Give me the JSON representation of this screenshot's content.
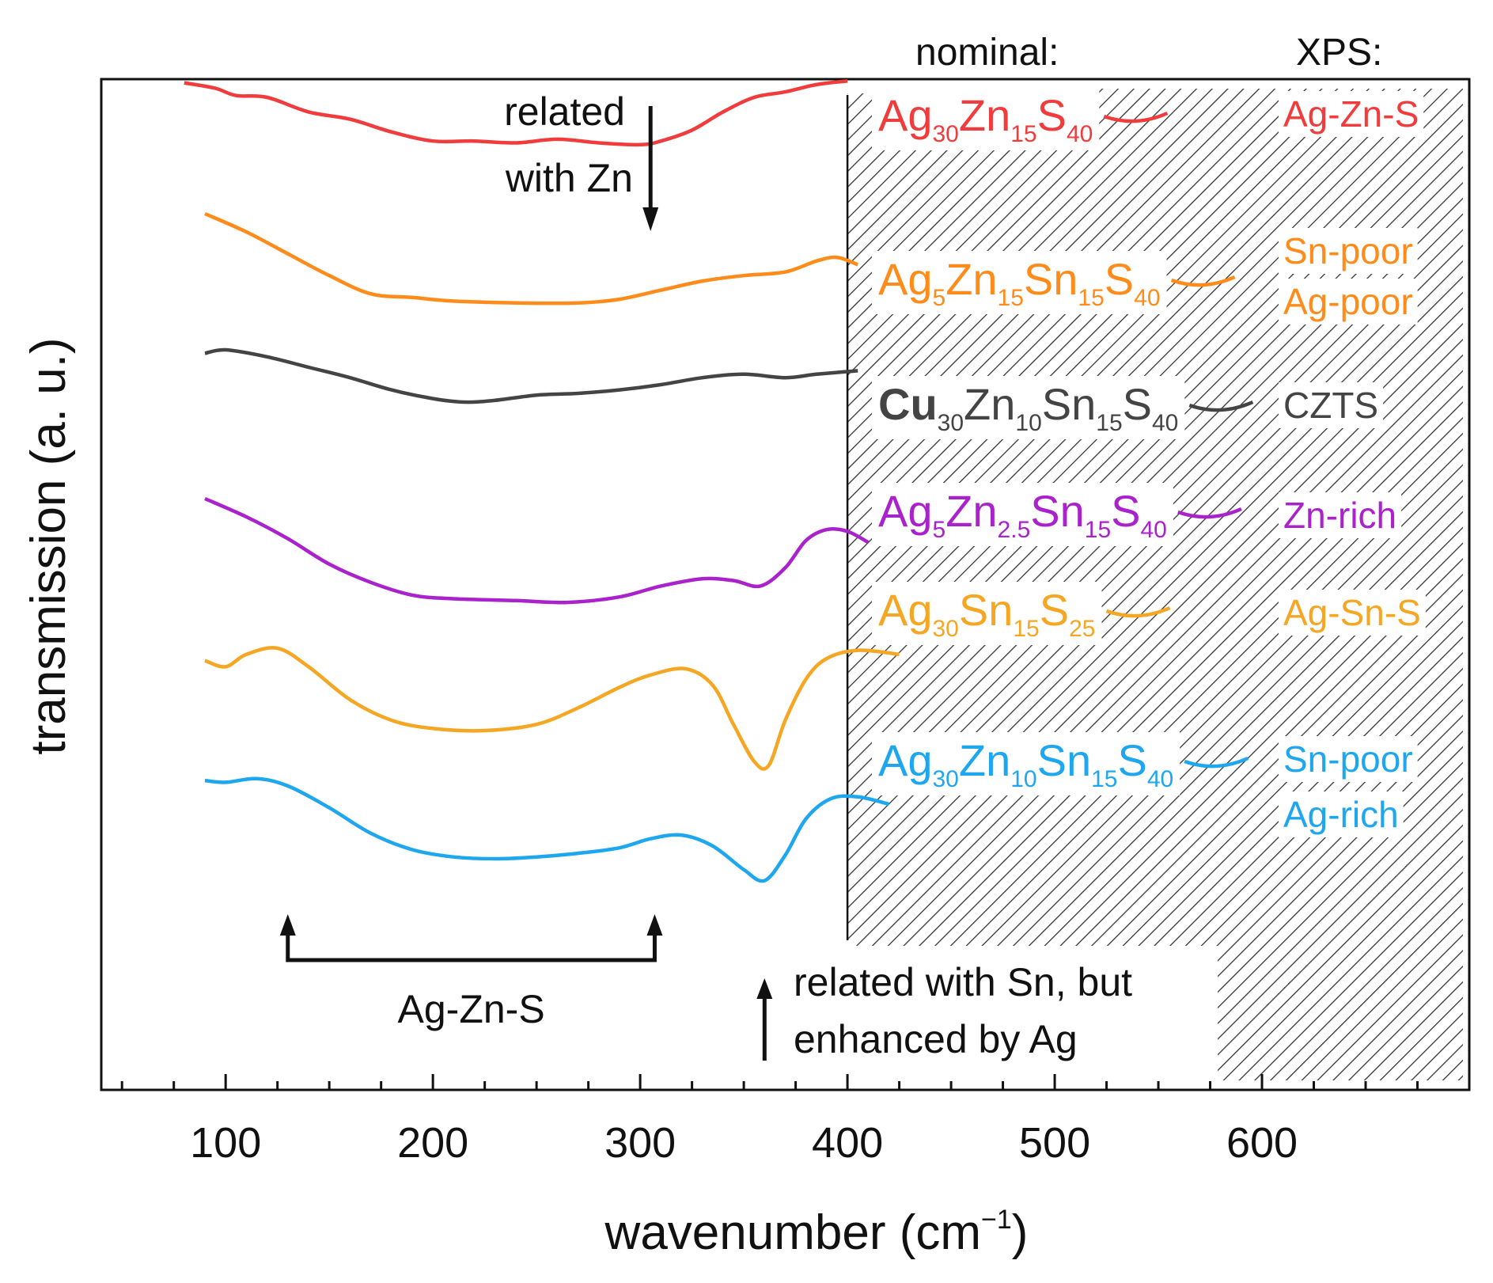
{
  "chart_data": {
    "type": "line",
    "xlabel": "wavenumber (cm",
    "xlabel_sup": "−1",
    "xlabel_close": ")",
    "ylabel": "transmission (a. u.)",
    "xlim": [
      40,
      700
    ],
    "xticks": [
      100,
      200,
      300,
      400,
      500,
      600
    ],
    "grid": false,
    "header_nominal": "nominal:",
    "header_xps": "XPS:",
    "shaded_region_x": [
      400,
      700
    ],
    "vline_x": 400,
    "annotations": {
      "zn": [
        "related",
        "with Zn"
      ],
      "sn": [
        "related with Sn, but",
        "enhanced by Ag"
      ],
      "agzns": "Ag-Zn-S"
    },
    "series": [
      {
        "name": "Ag30Zn15S40",
        "color": "#f03c3c",
        "label_parts": [
          [
            "Ag",
            ""
          ],
          [
            "30",
            "s"
          ],
          [
            "Zn",
            ""
          ],
          [
            "15",
            "s"
          ],
          [
            "S",
            ""
          ],
          [
            "40",
            "s"
          ]
        ],
        "xps": [
          "Ag-Zn-S"
        ],
        "points": [
          [
            80,
            0.98
          ],
          [
            95,
            0.95
          ],
          [
            105,
            0.91
          ],
          [
            120,
            0.9
          ],
          [
            140,
            0.82
          ],
          [
            160,
            0.78
          ],
          [
            180,
            0.71
          ],
          [
            200,
            0.66
          ],
          [
            220,
            0.66
          ],
          [
            240,
            0.65
          ],
          [
            260,
            0.67
          ],
          [
            280,
            0.65
          ],
          [
            300,
            0.64
          ],
          [
            310,
            0.66
          ],
          [
            325,
            0.72
          ],
          [
            340,
            0.82
          ],
          [
            355,
            0.9
          ],
          [
            370,
            0.93
          ],
          [
            385,
            0.97
          ],
          [
            400,
            0.99
          ]
        ]
      },
      {
        "name": "Ag5Zn15Sn15S40",
        "color": "#ff8c1a",
        "label_parts": [
          [
            "Ag",
            ""
          ],
          [
            "5",
            "s"
          ],
          [
            "Zn",
            ""
          ],
          [
            "15",
            "s"
          ],
          [
            "Sn",
            ""
          ],
          [
            "15",
            "s"
          ],
          [
            "S",
            ""
          ],
          [
            "40",
            "s"
          ]
        ],
        "xps": [
          "Sn-poor",
          "Ag-poor"
        ],
        "points": [
          [
            90,
            1.0
          ],
          [
            110,
            0.9
          ],
          [
            130,
            0.78
          ],
          [
            150,
            0.66
          ],
          [
            170,
            0.56
          ],
          [
            190,
            0.54
          ],
          [
            210,
            0.52
          ],
          [
            240,
            0.51
          ],
          [
            270,
            0.51
          ],
          [
            290,
            0.53
          ],
          [
            310,
            0.58
          ],
          [
            330,
            0.63
          ],
          [
            350,
            0.66
          ],
          [
            370,
            0.68
          ],
          [
            385,
            0.74
          ],
          [
            395,
            0.76
          ],
          [
            405,
            0.72
          ]
        ]
      },
      {
        "name": "Cu30Zn10Sn15S40",
        "color": "#444444",
        "label_parts": [
          [
            "Cu",
            ""
          ],
          [
            "30",
            "s"
          ],
          [
            "Zn",
            ""
          ],
          [
            "10",
            "s"
          ],
          [
            "Sn",
            ""
          ],
          [
            "15",
            "s"
          ],
          [
            "S",
            ""
          ],
          [
            "40",
            "s"
          ]
        ],
        "xps": [
          "CZTS"
        ],
        "points": [
          [
            90,
            0.88
          ],
          [
            100,
            0.9
          ],
          [
            120,
            0.86
          ],
          [
            140,
            0.8
          ],
          [
            160,
            0.74
          ],
          [
            180,
            0.67
          ],
          [
            200,
            0.62
          ],
          [
            215,
            0.6
          ],
          [
            230,
            0.61
          ],
          [
            250,
            0.64
          ],
          [
            270,
            0.65
          ],
          [
            290,
            0.67
          ],
          [
            310,
            0.7
          ],
          [
            330,
            0.74
          ],
          [
            350,
            0.76
          ],
          [
            370,
            0.74
          ],
          [
            385,
            0.76
          ],
          [
            405,
            0.78
          ]
        ]
      },
      {
        "name": "Ag5Zn2.5Sn15S40",
        "color": "#aa22cc",
        "label_parts": [
          [
            "Ag",
            ""
          ],
          [
            "5",
            "s"
          ],
          [
            "Zn",
            ""
          ],
          [
            "2.5",
            "s"
          ],
          [
            "Sn",
            ""
          ],
          [
            "15",
            "s"
          ],
          [
            "S",
            ""
          ],
          [
            "40",
            "s"
          ]
        ],
        "xps": [
          "Zn-rich"
        ],
        "points": [
          [
            90,
            1.0
          ],
          [
            110,
            0.9
          ],
          [
            130,
            0.78
          ],
          [
            150,
            0.64
          ],
          [
            170,
            0.54
          ],
          [
            190,
            0.47
          ],
          [
            210,
            0.45
          ],
          [
            240,
            0.44
          ],
          [
            265,
            0.43
          ],
          [
            290,
            0.46
          ],
          [
            310,
            0.52
          ],
          [
            330,
            0.56
          ],
          [
            345,
            0.55
          ],
          [
            358,
            0.52
          ],
          [
            370,
            0.62
          ],
          [
            380,
            0.77
          ],
          [
            390,
            0.83
          ],
          [
            400,
            0.82
          ],
          [
            410,
            0.76
          ]
        ]
      },
      {
        "name": "Ag30Sn15S25",
        "color": "#f5a623",
        "label_parts": [
          [
            "Ag",
            ""
          ],
          [
            "30",
            "s"
          ],
          [
            "Sn",
            ""
          ],
          [
            "15",
            "s"
          ],
          [
            "S",
            ""
          ],
          [
            "25",
            "s"
          ]
        ],
        "xps": [
          "Ag-Sn-S"
        ],
        "points": [
          [
            90,
            0.79
          ],
          [
            100,
            0.76
          ],
          [
            110,
            0.82
          ],
          [
            125,
            0.85
          ],
          [
            140,
            0.76
          ],
          [
            160,
            0.6
          ],
          [
            180,
            0.5
          ],
          [
            200,
            0.46
          ],
          [
            225,
            0.45
          ],
          [
            250,
            0.48
          ],
          [
            270,
            0.56
          ],
          [
            290,
            0.66
          ],
          [
            305,
            0.72
          ],
          [
            322,
            0.75
          ],
          [
            335,
            0.67
          ],
          [
            345,
            0.48
          ],
          [
            355,
            0.3
          ],
          [
            362,
            0.28
          ],
          [
            370,
            0.5
          ],
          [
            380,
            0.7
          ],
          [
            390,
            0.8
          ],
          [
            405,
            0.84
          ],
          [
            425,
            0.82
          ]
        ]
      },
      {
        "name": "Ag30Zn10Sn15S40",
        "color": "#1ea7ee",
        "label_parts": [
          [
            "Ag",
            ""
          ],
          [
            "30",
            "s"
          ],
          [
            "Zn",
            ""
          ],
          [
            "10",
            "s"
          ],
          [
            "Sn",
            ""
          ],
          [
            "15",
            "s"
          ],
          [
            "S",
            ""
          ],
          [
            "40",
            "s"
          ]
        ],
        "xps": [
          "Sn-poor",
          "Ag-rich"
        ],
        "points": [
          [
            90,
            0.93
          ],
          [
            100,
            0.92
          ],
          [
            115,
            0.94
          ],
          [
            130,
            0.9
          ],
          [
            150,
            0.78
          ],
          [
            170,
            0.64
          ],
          [
            190,
            0.55
          ],
          [
            210,
            0.51
          ],
          [
            230,
            0.5
          ],
          [
            250,
            0.51
          ],
          [
            270,
            0.53
          ],
          [
            290,
            0.56
          ],
          [
            305,
            0.61
          ],
          [
            320,
            0.63
          ],
          [
            335,
            0.57
          ],
          [
            350,
            0.44
          ],
          [
            360,
            0.38
          ],
          [
            370,
            0.52
          ],
          [
            380,
            0.72
          ],
          [
            392,
            0.83
          ],
          [
            405,
            0.84
          ],
          [
            420,
            0.8
          ]
        ]
      }
    ]
  }
}
